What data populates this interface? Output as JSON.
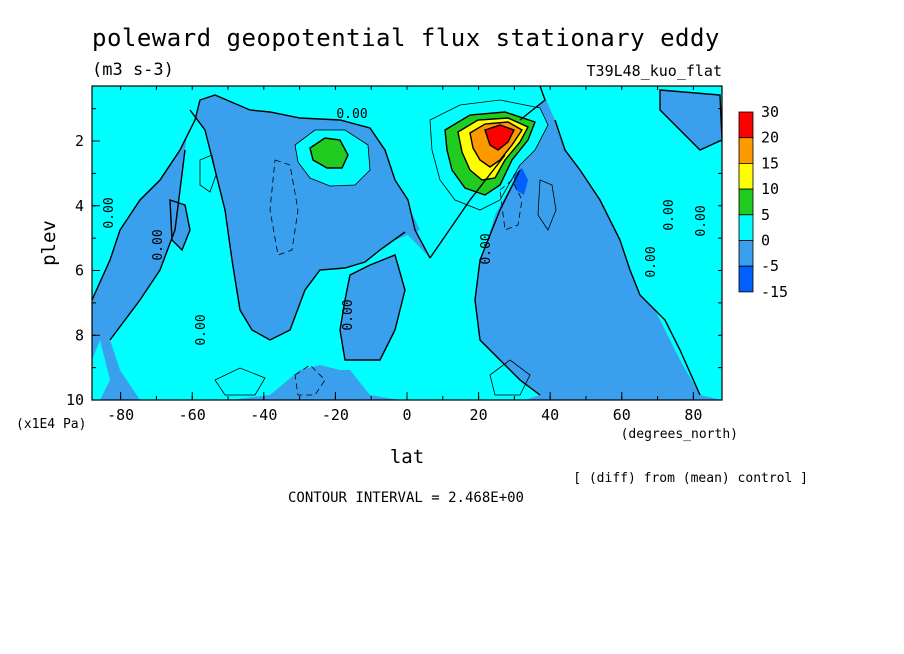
{
  "chart_data": {
    "type": "contour",
    "title": "poleward geopotential flux stationary eddy",
    "units": "(m3 s-3)",
    "run_label": "T39L48_kuo_flat",
    "xlabel": "lat",
    "x_units": "(degrees_north)",
    "ylabel": "plev",
    "y_units": "(x1E4 Pa)",
    "xlim": [
      -88,
      88
    ],
    "ylim": [
      10,
      0.3
    ],
    "x_ticks": [
      "-80",
      "-60",
      "-40",
      "-20",
      "0",
      "20",
      "40",
      "60",
      "80"
    ],
    "y_ticks": [
      "2",
      "4",
      "6",
      "8",
      "10"
    ],
    "colorbar_labels": [
      "30",
      "20",
      "15",
      "10",
      "5",
      "0",
      "-5",
      "-15"
    ],
    "levels": [
      -15,
      -5,
      0,
      5,
      10,
      15,
      20,
      30
    ],
    "colors": [
      "#0060ff",
      "#3aa0ee",
      "#00ffff",
      "#20cc20",
      "#ffff00",
      "#ff9900",
      "#ff0000"
    ],
    "contour_labels": [
      "0.00",
      "0.00",
      "0.00",
      "0.00",
      "0.00",
      "0.00",
      "0.00",
      "0.00",
      "0.00"
    ],
    "footer_note": "[ (diff) from (mean) control ]",
    "contour_interval": "CONTOUR INTERVAL = 2.468E+00",
    "features": [
      {
        "lat": 26,
        "plev": 1.8,
        "peak": 28,
        "note": "positive maximum"
      },
      {
        "lat": -20,
        "plev": 2.2,
        "peak": 6,
        "note": "secondary positive maximum"
      },
      {
        "lat": 32,
        "plev": 3.2,
        "peak": -14,
        "note": "negative minimum"
      }
    ]
  }
}
